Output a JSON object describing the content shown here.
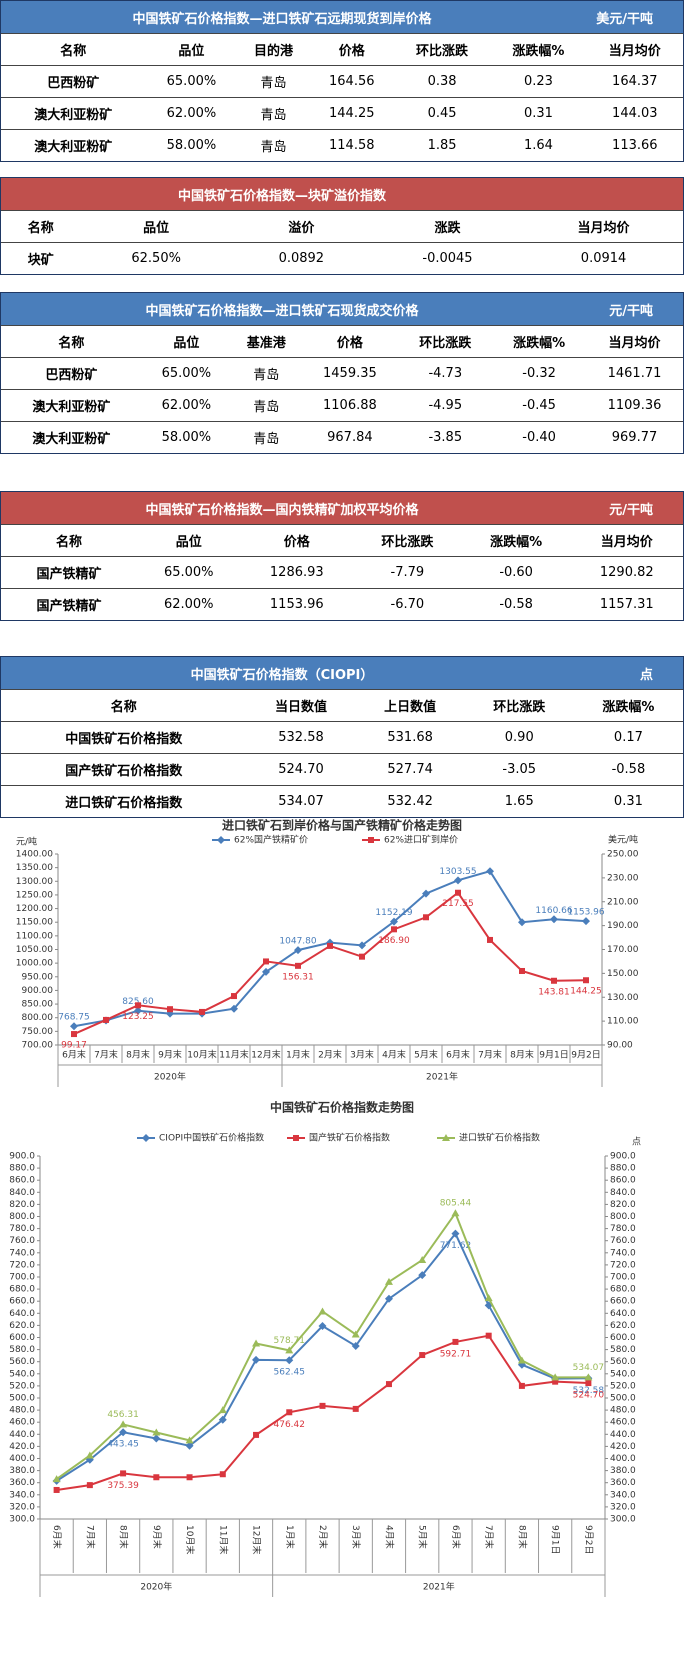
{
  "tables": [
    {
      "title": "中国铁矿石价格指数—进口铁矿石远期现货到岸价格",
      "unit": "美元/干吨",
      "color": "#4a7ebb",
      "headers": [
        "名称",
        "品位",
        "目的港",
        "价格",
        "环比涨跌",
        "涨跌幅%",
        "当月均价"
      ],
      "rows": [
        [
          "巴西粉矿",
          "65.00%",
          "青岛",
          "164.56",
          "0.38",
          "0.23",
          "164.37"
        ],
        [
          "澳大利亚粉矿",
          "62.00%",
          "青岛",
          "144.25",
          "0.45",
          "0.31",
          "144.03"
        ],
        [
          "澳大利亚粉矿",
          "58.00%",
          "青岛",
          "114.58",
          "1.85",
          "1.64",
          "113.66"
        ]
      ]
    },
    {
      "title": "中国铁矿石价格指数—块矿溢价指数",
      "color": "#c0504d",
      "headers": [
        "名称",
        "品位",
        "溢价",
        "涨跌",
        "当月均价"
      ],
      "rows": [
        [
          "块矿",
          "62.50%",
          "0.0892",
          "-0.0045",
          "0.0914"
        ]
      ]
    },
    {
      "title": "中国铁矿石价格指数—进口铁矿石现货成交价格",
      "unit": "元/干吨",
      "color": "#4a7ebb",
      "headers": [
        "名称",
        "品位",
        "基准港",
        "价格",
        "环比涨跌",
        "涨跌幅%",
        "当月均价"
      ],
      "rows": [
        [
          "巴西粉矿",
          "65.00%",
          "青岛",
          "1459.35",
          "-4.73",
          "-0.32",
          "1461.71"
        ],
        [
          "澳大利亚粉矿",
          "62.00%",
          "青岛",
          "1106.88",
          "-4.95",
          "-0.45",
          "1109.36"
        ],
        [
          "澳大利亚粉矿",
          "58.00%",
          "青岛",
          "967.84",
          "-3.85",
          "-0.40",
          "969.77"
        ]
      ]
    },
    {
      "title": "中国铁矿石价格指数—国内铁精矿加权平均价格",
      "unit": "元/干吨",
      "color": "#c0504d",
      "headers": [
        "名称",
        "品位",
        "价格",
        "环比涨跌",
        "涨跌幅%",
        "当月均价"
      ],
      "rows": [
        [
          "国产铁精矿",
          "65.00%",
          "1286.93",
          "-7.79",
          "-0.60",
          "1290.82"
        ],
        [
          "国产铁精矿",
          "62.00%",
          "1153.96",
          "-6.70",
          "-0.58",
          "1157.31"
        ]
      ]
    },
    {
      "title": "中国铁矿石价格指数（CIOPI）",
      "unit": "点",
      "color": "#4a7ebb",
      "headers": [
        "名称",
        "当日数值",
        "上日数值",
        "环比涨跌",
        "涨跌幅%"
      ],
      "rows": [
        [
          "中国铁矿石价格指数",
          "532.58",
          "531.68",
          "0.90",
          "0.17"
        ],
        [
          "国产铁矿石价格指数",
          "524.70",
          "527.74",
          "-3.05",
          "-0.58"
        ],
        [
          "进口铁矿石价格指数",
          "534.07",
          "532.42",
          "1.65",
          "0.31"
        ]
      ]
    }
  ],
  "chart_data": [
    {
      "type": "line",
      "title": "进口铁矿石到岸价格与国产铁精矿价格走势图",
      "y_label": "元/吨",
      "y2_label": "美元/吨",
      "categories": [
        "6月末",
        "7月末",
        "8月末",
        "9月末",
        "10月末",
        "11月末",
        "12月末",
        "1月末",
        "2月末",
        "3月末",
        "4月末",
        "5月末",
        "6月末",
        "7月末",
        "8月末",
        "9月1日",
        "9月2日"
      ],
      "x_group_labels": [
        "2020年",
        "2021年"
      ],
      "ylim": [
        700,
        1400
      ],
      "yticks": [
        {
          "value": 700,
          "label": "700.00"
        },
        {
          "value": 750,
          "label": "750.00"
        },
        {
          "value": 800,
          "label": "800.00"
        },
        {
          "value": 850,
          "label": "850.00"
        },
        {
          "value": 900,
          "label": "900.00"
        },
        {
          "value": 950,
          "label": "950.00"
        },
        {
          "value": 1000,
          "label": "1000.00"
        },
        {
          "value": 1050,
          "label": "1050.00"
        },
        {
          "value": 1100,
          "label": "1100.00"
        },
        {
          "value": 1150,
          "label": "1150.00"
        },
        {
          "value": 1200,
          "label": "1200.00"
        },
        {
          "value": 1250,
          "label": "1250.00"
        },
        {
          "value": 1300,
          "label": "1300.00"
        },
        {
          "value": 1350,
          "label": "1350.00"
        },
        {
          "value": 1400,
          "label": "1400.00"
        }
      ],
      "y2lim": [
        90,
        250
      ],
      "y2ticks": [
        {
          "value": 90,
          "label": "90.00"
        },
        {
          "value": 110,
          "label": "110.00"
        },
        {
          "value": 130,
          "label": "130.00"
        },
        {
          "value": 150,
          "label": "150.00"
        },
        {
          "value": 170,
          "label": "170.00"
        },
        {
          "value": 190,
          "label": "190.00"
        },
        {
          "value": 210,
          "label": "210.00"
        },
        {
          "value": 230,
          "label": "230.00"
        },
        {
          "value": 250,
          "label": "250.00"
        }
      ],
      "grid": false,
      "series": [
        {
          "name": "62%国产铁精矿价",
          "color": "#4a7ebb",
          "marker": "diamond",
          "values": [
            768.75,
            790,
            825.6,
            815,
            815,
            833,
            968,
            1047.8,
            1075,
            1065,
            1152.19,
            1255,
            1303.55,
            1337,
            1150,
            1160.66,
            1153.96
          ],
          "value_labels": [
            "768.75",
            null,
            "825.60",
            null,
            null,
            null,
            null,
            "1047.80",
            null,
            null,
            "1152.19",
            null,
            "1303.55",
            null,
            null,
            "1160.66",
            "1153.96"
          ]
        },
        {
          "name": "62%进口矿到岸价",
          "color": "#d9363e",
          "marker": "square",
          "axis": "y2",
          "values": [
            99.17,
            111,
            123.25,
            120,
            117.7,
            131,
            160,
            156.31,
            173,
            164,
            186.9,
            197,
            217.55,
            178,
            152,
            143.81,
            144.25
          ],
          "value_labels": [
            "99.17",
            null,
            "123.25",
            null,
            null,
            null,
            null,
            "156.31",
            null,
            null,
            "186.90",
            null,
            "217.55",
            null,
            null,
            "143.81",
            "144.25"
          ]
        }
      ]
    },
    {
      "type": "line",
      "title": "中国铁矿石价格指数走势图",
      "y2_label": "点",
      "categories": [
        "6月末",
        "7月末",
        "8月末",
        "9月末",
        "10月末",
        "11月末",
        "12月末",
        "1月末",
        "2月末",
        "3月末",
        "4月末",
        "5月末",
        "6月末",
        "7月末",
        "8月末",
        "9月1日",
        "9月2日"
      ],
      "x_group_labels": [
        "2020年",
        "2021年"
      ],
      "ylim": [
        300,
        900
      ],
      "yticks": [
        {
          "value": 300,
          "label": "300.0"
        },
        {
          "value": 320,
          "label": "320.0"
        },
        {
          "value": 340,
          "label": "340.0"
        },
        {
          "value": 360,
          "label": "360.0"
        },
        {
          "value": 380,
          "label": "380.0"
        },
        {
          "value": 400,
          "label": "400.0"
        },
        {
          "value": 420,
          "label": "420.0"
        },
        {
          "value": 440,
          "label": "440.0"
        },
        {
          "value": 460,
          "label": "460.0"
        },
        {
          "value": 480,
          "label": "480.0"
        },
        {
          "value": 500,
          "label": "500.0"
        },
        {
          "value": 520,
          "label": "520.0"
        },
        {
          "value": 540,
          "label": "540.0"
        },
        {
          "value": 560,
          "label": "560.0"
        },
        {
          "value": 580,
          "label": "580.0"
        },
        {
          "value": 600,
          "label": "600.0"
        },
        {
          "value": 620,
          "label": "620.0"
        },
        {
          "value": 640,
          "label": "640.0"
        },
        {
          "value": 660,
          "label": "660.0"
        },
        {
          "value": 680,
          "label": "680.0"
        },
        {
          "value": 700,
          "label": "700.0"
        },
        {
          "value": 720,
          "label": "720.0"
        },
        {
          "value": 740,
          "label": "740.0"
        },
        {
          "value": 760,
          "label": "760.0"
        },
        {
          "value": 780,
          "label": "780.0"
        },
        {
          "value": 800,
          "label": "800.0"
        },
        {
          "value": 820,
          "label": "820.0"
        },
        {
          "value": 840,
          "label": "840.0"
        },
        {
          "value": 860,
          "label": "860.0"
        },
        {
          "value": 880,
          "label": "880.0"
        },
        {
          "value": 900,
          "label": "900.0"
        }
      ],
      "grid": false,
      "series": [
        {
          "name": "CIOPI中国铁矿石价格指数",
          "color": "#4a7ebb",
          "marker": "diamond",
          "values": [
            363,
            398,
            443.45,
            433,
            421,
            464,
            563,
            562.45,
            619,
            586,
            664,
            703,
            771.62,
            653,
            555,
            532,
            532.58
          ],
          "value_labels": [
            null,
            null,
            "443.45",
            null,
            null,
            null,
            null,
            "562.45",
            null,
            null,
            null,
            null,
            "771.62",
            null,
            null,
            null,
            "532.58"
          ]
        },
        {
          "name": "国产铁矿石价格指数",
          "color": "#d9363e",
          "marker": "square",
          "values": [
            348,
            356,
            375.39,
            369,
            369,
            374,
            439,
            476.42,
            487,
            482,
            523,
            571,
            592.71,
            603,
            520,
            527,
            524.7
          ],
          "value_labels": [
            null,
            null,
            "375.39",
            null,
            null,
            null,
            null,
            "476.42",
            null,
            null,
            null,
            null,
            "592.71",
            null,
            null,
            null,
            "524.70"
          ]
        },
        {
          "name": "进口铁矿石价格指数",
          "color": "#9bbb59",
          "marker": "triangle",
          "values": [
            366,
            405,
            456.31,
            443,
            430,
            480,
            590,
            578.71,
            643,
            605,
            692,
            728,
            805.44,
            665,
            562,
            534,
            534.07
          ],
          "value_labels": [
            null,
            null,
            "456.31",
            null,
            null,
            null,
            null,
            "578.71",
            null,
            null,
            null,
            null,
            "805.44",
            null,
            null,
            null,
            "534.07"
          ]
        }
      ]
    }
  ]
}
